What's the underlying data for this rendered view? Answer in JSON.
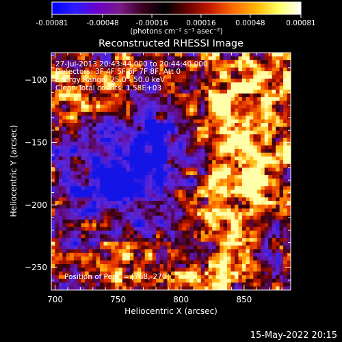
{
  "chart_data": {
    "type": "heatmap",
    "title": "Reconstructed RHESSI Image",
    "xlabel": "Heliocentric X (arcsec)",
    "ylabel": "Heliocentric Y (arcsec)",
    "xlim": [
      697,
      887
    ],
    "ylim": [
      -268,
      -78
    ],
    "x_ticks": [
      700,
      750,
      800,
      850
    ],
    "y_ticks": [
      -100,
      -150,
      -200,
      -250
    ],
    "colorbar": {
      "range": [
        -0.00081,
        0.00081
      ],
      "ticks": [
        "-0.00081",
        "-0.00048",
        "-0.00016",
        "0.00016",
        "0.00048",
        "0.00081"
      ],
      "units": "(photons cm⁻² s⁻¹ asec⁻²)",
      "colors": [
        "#0000ff",
        "#2b1dff",
        "#6a00c8",
        "#7a1a8a",
        "#3a0020",
        "#000000",
        "#6a0000",
        "#c81a00",
        "#ff6a00",
        "#ffb400",
        "#ffff60",
        "#ffffff"
      ]
    },
    "annotations": {
      "time_range": "27-Jul-2013 20:43:44.000 to 20:44:40.000",
      "detectors": "Detectors: 3F 4F 5F 6F 7F 8F, Att 0",
      "energy": "Energy Range: 25.0 - 50.0 keV",
      "clean": "Clean    Total counts: 1.58E+03",
      "peak": "Position of Peak = [768,-270]"
    },
    "peak": [
      768,
      -270
    ],
    "footer_date": "15-May-2022 20:15",
    "grid": false
  }
}
